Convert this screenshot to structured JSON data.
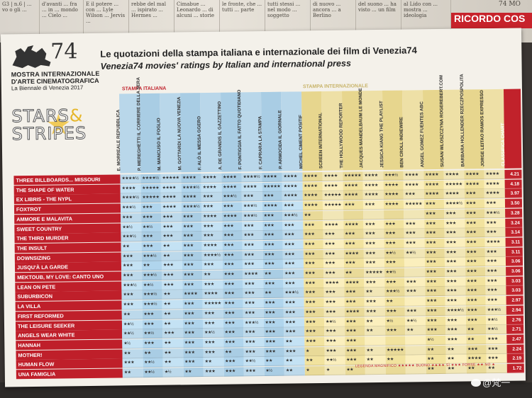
{
  "newspaper": {
    "cols": [
      "G3 | n.6 | ... vo o gli ...",
      "d'avanti ... fra ... in ... mondo ... Cielo ...",
      "E il potere ... con ... Lyle Wilson ... Jervis ...",
      "rebbe del mal ... ispirato ... Hermes ...",
      "Cimabue ... Leonardo ... di alcuni ... storie",
      "le fronte, che ... tutti ... parte",
      "tutti stessi ... nel modo ... soggetto",
      "di nuovo ... ancora ... a Berlino",
      "del suono ... ha visto ... un film",
      "al Lido con ... mostra ... ideologia"
    ],
    "red_label": "RICORDO  COS",
    "right_text": "74 MO"
  },
  "header": {
    "logo_number": "74",
    "logo_line1": "MOSTRA INTERNAZIONALE",
    "logo_line2": "D'ARTE CINEMATOGRAFICA",
    "logo_line3": "La Biennale di Venezia 2017",
    "title_it": "Le quotazioni della stampa italiana e internazionale dei film di Venezia74",
    "title_en": "Venezia74 movies' ratings by Italian and international press",
    "stars_line1": "STARS",
    "stars_amp": "&",
    "stars_line2": "STRIPES"
  },
  "section_labels": {
    "italian": "STAMPA ITALIANA",
    "international": "STAMPA INTERNAZIONALE"
  },
  "columns": [
    {
      "name": "E. MORREALE REPUBBLICA",
      "group": "it"
    },
    {
      "name": "P. MEREGHETTI IL CORRIERE DELLA SERA",
      "group": "it"
    },
    {
      "name": "M. MANCUSO IL FOGLIO",
      "group": "it"
    },
    {
      "name": "M. GOTTARDI LA NUOVA VENEZIA",
      "group": "it"
    },
    {
      "name": "F. ALÒ IL MESSA GGERO",
      "group": "it"
    },
    {
      "name": "A. DE GRANDIS IL GAZZETTINO",
      "group": "it"
    },
    {
      "name": "F. PONTIGGIA IL FATTO QUOTIDIANO",
      "group": "it"
    },
    {
      "name": "F. CAPRARA LA STAMPA",
      "group": "it"
    },
    {
      "name": "P. ARMOCIDA IL GIORNALE",
      "group": "it"
    },
    {
      "name": "MICHEL CIMENT POSITIF",
      "group": "intl"
    },
    {
      "name": "SCREEN INTERNATIONAL",
      "group": "intl"
    },
    {
      "name": "THE HOLLYWOOD REPORTER",
      "group": "intl"
    },
    {
      "name": "JACQUES MANDELBAUM LE MONDE",
      "group": "intl"
    },
    {
      "name": "JESSICA KIANG THE PLAYLIST",
      "group": "intl"
    },
    {
      "name": "BEN CROLL INDIEWIRE",
      "group": "intl"
    },
    {
      "name": "ANGEL GOMEZ FUENTES ABC",
      "group": "intl"
    },
    {
      "name": "SUSAN WLOSZCZYNA ROGEREBERT.COM",
      "group": "intl"
    },
    {
      "name": "BARBARA HOLLENDER RZECZPOSPOLITA",
      "group": "intl"
    },
    {
      "name": "JORGE LEITAO RAMOS EXPRESSO",
      "group": "intl"
    },
    {
      "name": "CLASSIFICA CHART",
      "group": "class"
    }
  ],
  "films": [
    {
      "title": "THREE BILLBOARDS... MISSOURI",
      "score": "4.21",
      "ratings": [
        "★★★★½",
        "★★★★½",
        "★★★★★",
        "★★★★",
        "★★★★",
        "★★★★",
        "★★★★½",
        "★★★★",
        "★★★★",
        "★★★★",
        "★★★★",
        "★★★★★",
        "★★★★",
        "★★★½",
        "★★★★",
        "★★★★",
        "★★★★",
        "★★★★",
        "★★★★"
      ]
    },
    {
      "title": "THE SHAPE OF WATER",
      "score": "4.18",
      "ratings": [
        "★★★★",
        "★★★★★",
        "★★★★",
        "★★★★½",
        "★★★★",
        "★★★★",
        "★★★★",
        "★★★★★",
        "★★★★",
        "★★★★",
        "★★★★",
        "★★★★",
        "★★★★",
        "★★★★",
        "★★★★",
        "★★★★",
        "★★★★★",
        "★★★★",
        "★★★★"
      ]
    },
    {
      "title": "EX LIBRIS - THE NYPL",
      "score": "3.97",
      "ratings": [
        "★★★★½",
        "★★★★★",
        "★★★★",
        "★★★★",
        "★★★",
        "★★★½",
        "★★★",
        "★★★",
        "★★★★",
        "★★★★",
        "★★★★★",
        "★★★★",
        "★★★★",
        "★★★★",
        "★★★",
        "★★★★",
        "★★★★",
        "★★★",
        "★★★★"
      ]
    },
    {
      "title": "FOXTROT",
      "score": "3.50",
      "ratings": [
        "★★★½",
        "★★★",
        "★★★★",
        "★★★★½",
        "★★★",
        "★★★",
        "★★★½",
        "★★★★",
        "★★★",
        "★★★★",
        "★★★★★",
        "★★★",
        "★★★",
        "★★★★",
        "★★★★★",
        "★★★",
        "★★★★½",
        "★★★",
        "★★★"
      ]
    },
    {
      "title": "AMMORE E MALAVITA",
      "score": "3.28",
      "ratings": [
        "★★★",
        "★★★",
        "★★★",
        "★★★",
        "★★★★",
        "★★★★",
        "★★★½",
        "★★★",
        "★★★½",
        "★★",
        "",
        "",
        "",
        "",
        "",
        "★★★",
        "★★★",
        "★★★",
        "★★★½"
      ]
    },
    {
      "title": "SWEET COUNTRY",
      "score": "3.24",
      "ratings": [
        "★★½",
        "★★½",
        "★★★",
        "★★★",
        "★★★",
        "★★★",
        "★★★",
        "★★★",
        "★★★",
        "★★★",
        "★★★★",
        "★★★★",
        "★★★",
        "★★★",
        "★★★",
        "★★★",
        "★★★",
        "★★★",
        "★★★"
      ]
    },
    {
      "title": "THE THIRD MURDER",
      "score": "3.14",
      "ratings": [
        "★★★½",
        "★★★",
        "★★★",
        "★★★",
        "★★★",
        "★★★",
        "★★★",
        "★★★",
        "★★★",
        "★★★",
        "★★★",
        "★★★",
        "★★★",
        "★★★",
        "★★★",
        "★★★",
        "★★★",
        "★★★",
        "★★★"
      ]
    },
    {
      "title": "THE INSULT",
      "score": "3.11",
      "ratings": [
        "★★",
        "★★★",
        "★★",
        "★★★",
        "★★★★",
        "★★★",
        "★★★",
        "★★★",
        "★★★",
        "★★★",
        "★★★",
        "★★★",
        "★★★",
        "★★★",
        "★★★",
        "★★★",
        "★★★",
        "★★★",
        "★★★★"
      ]
    },
    {
      "title": "DOWNSIZING",
      "score": "3.11",
      "ratings": [
        "★★★",
        "★★★½",
        "★★",
        "★★★",
        "★★★★½",
        "★★★",
        "★★★",
        "★★★",
        "★★★",
        "★★★",
        "★★★",
        "★★★★",
        "★★★",
        "★★½",
        "★★½",
        "★★★",
        "★★★",
        "★★★",
        "★★★"
      ]
    },
    {
      "title": "JUSQU'À LA GARDE",
      "score": "3.06",
      "ratings": [
        "★★★",
        "★★",
        "★★★",
        "★★★",
        "★★★",
        "★★★",
        "★★★",
        "★★★",
        "★★★",
        "★★★",
        "★★★",
        "★★★",
        "★★★",
        "★★★",
        "",
        "★★★",
        "★★★",
        "★★★",
        "★★★"
      ]
    },
    {
      "title": "MEKTOUB, MY LOVE: CANTO UNO",
      "score": "3.06",
      "ratings": [
        "★★★",
        "★★★½",
        "★★★",
        "★★★",
        "★★",
        "★★★",
        "★★★★",
        "★★",
        "★★★",
        "★★★",
        "★★★",
        "★★",
        "★★★★★",
        "★★½",
        "",
        "★★★",
        "★★★",
        "★★★",
        "★★★"
      ]
    },
    {
      "title": "LEAN ON PETE",
      "score": "3.03",
      "ratings": [
        "★★★½",
        "★★½",
        "★★★",
        "★★★",
        "★★★",
        "★★★",
        "★★★",
        "★★★",
        "★★★",
        "★★★",
        "★★★★",
        "★★★★",
        "★★★",
        "★★★",
        "★★★",
        "★★★",
        "★★★",
        "★★★",
        "★★★"
      ]
    },
    {
      "title": "SUBURBICON",
      "score": "3.03",
      "ratings": [
        "★★★",
        "★★★½",
        "★★",
        "★★★★",
        "★★★★",
        "★★★",
        "★★★",
        "★★",
        "★★★½",
        "★★★",
        "★★★",
        "★★★",
        "★★",
        "★★★½",
        "★★★",
        "★★★",
        "★★★",
        "★★★",
        "★★★"
      ]
    },
    {
      "title": "LA VILLA",
      "score": "2.97",
      "ratings": [
        "★★★",
        "★★★½",
        "★★",
        "★★★",
        "★★★★★",
        "★★★",
        "★★★",
        "★★★",
        "★★★",
        "★★★",
        "★★★",
        "★★★",
        "★★★",
        "★★",
        "",
        "★★★",
        "★★★",
        "★★★",
        "★★★"
      ]
    },
    {
      "title": "FIRST REFORMED",
      "score": "2.94",
      "ratings": [
        "★★",
        "★★★",
        "★★",
        "★★★",
        "★★★",
        "★★★",
        "★★★",
        "★★★",
        "★★★",
        "★★★",
        "★★★",
        "★★★★",
        "★★★",
        "★★★",
        "★★★",
        "★★★",
        "★★★★½",
        "★★★",
        "★★★½"
      ]
    },
    {
      "title": "THE LEISURE SEEKER",
      "score": "2.76",
      "ratings": [
        "★★½",
        "★★★",
        "★★",
        "★★★",
        "★★★",
        "★★★",
        "★★★½",
        "★★★",
        "★★★",
        "★★★",
        "★★½",
        "★★★",
        "★★",
        "★½",
        "★★½",
        "★★★",
        "★★★",
        "★★★",
        "★★½"
      ]
    },
    {
      "title": "ANGELS WEAR WHITE",
      "score": "2.71",
      "ratings": [
        "★★½",
        "★★½",
        "★★★",
        "★★★",
        "★★½",
        "★★★",
        "★★★",
        "★★★",
        "★★★",
        "★★★",
        "★★★",
        "★★★",
        "★★",
        "★★★",
        "★★",
        "★★★",
        "★★★",
        "★★",
        "★★½"
      ]
    },
    {
      "title": "HANNAH",
      "score": "2.47",
      "ratings": [
        "★½",
        "★★★",
        "★★",
        "★★★",
        "★★★",
        "★★★",
        "★★★",
        "★★★",
        "★★",
        "★★★",
        "★★★",
        "★★★",
        "",
        "",
        "",
        "★½",
        "★★★",
        "★★",
        "★★★"
      ]
    },
    {
      "title": "MOTHER!",
      "score": "2.24",
      "ratings": [
        "★★",
        "★★",
        "★★",
        "★★★",
        "★★★",
        "★★",
        "★★★",
        "★★★",
        "★★★",
        "★",
        "★★★",
        "★★★",
        "★★",
        "★★★★★",
        "",
        "★★",
        "★★",
        "★★★",
        "★★★"
      ]
    },
    {
      "title": "HUMAN FLOW",
      "score": "2.19",
      "ratings": [
        "★★★",
        "★★½",
        "★★",
        "★★★",
        "★★",
        "★★★",
        "★★½",
        "★★",
        "★★",
        "★★",
        "★★½",
        "★★★",
        "★★",
        "★★",
        "",
        "★★",
        "★★",
        "★★★★",
        "★★★"
      ]
    },
    {
      "title": "UNA FAMIGLIA",
      "score": "1.72",
      "ratings": [
        "★★",
        "★★½",
        "★½",
        "★★",
        "★★★",
        "★★★",
        "★★★",
        "★½",
        "★★",
        "★",
        "★",
        "★★",
        "",
        "",
        "",
        "★★",
        "★★",
        "★★",
        "★★"
      ]
    }
  ],
  "legend": "LEGENDA   MAGNIFICO ★★★★★   BUONO ★★★★   SÌ ★★★   FORSE ★★   NO ★",
  "watermark": "@梵一"
}
